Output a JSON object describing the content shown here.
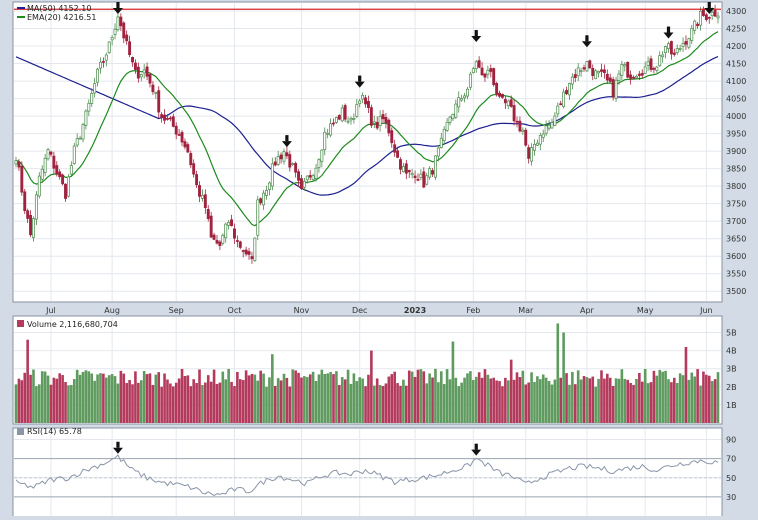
{
  "chart_data": {
    "type": "candlestick",
    "price_panel": {
      "ylim": [
        3475,
        4320
      ],
      "y_ticks": [
        "3500",
        "3550",
        "3600",
        "3650",
        "3700",
        "3750",
        "3800",
        "3850",
        "3900",
        "3950",
        "4000",
        "4050",
        "4100",
        "4150",
        "4200",
        "4250",
        "4300"
      ],
      "legend": [
        {
          "label": "MA(50) 4152.10",
          "color": "#1c1f8f"
        },
        {
          "label": "EMA(20) 4216.51",
          "color": "#1e8b1e"
        }
      ],
      "resistance_level": 4305,
      "resistance_color": "#d9242a",
      "x_ticks": [
        {
          "label": "Jul",
          "index": 12
        },
        {
          "label": "Aug",
          "index": 33
        },
        {
          "label": "Sep",
          "index": 55
        },
        {
          "label": "Oct",
          "index": 75
        },
        {
          "label": "Nov",
          "index": 98
        },
        {
          "label": "Dec",
          "index": 118
        },
        {
          "label": "2023",
          "index": 137,
          "bold": true
        },
        {
          "label": "Feb",
          "index": 157
        },
        {
          "label": "Mar",
          "index": 175
        },
        {
          "label": "Apr",
          "index": 196
        },
        {
          "label": "May",
          "index": 216
        },
        {
          "label": "Jun",
          "index": 237
        }
      ],
      "bars": 242,
      "anchors": [
        [
          0,
          3890
        ],
        [
          3,
          3740
        ],
        [
          5,
          3660
        ],
        [
          8,
          3820
        ],
        [
          11,
          3900
        ],
        [
          14,
          3840
        ],
        [
          17,
          3780
        ],
        [
          20,
          3900
        ],
        [
          24,
          4000
        ],
        [
          28,
          4120
        ],
        [
          32,
          4200
        ],
        [
          35,
          4290
        ],
        [
          38,
          4200
        ],
        [
          41,
          4120
        ],
        [
          44,
          4130
        ],
        [
          47,
          4080
        ],
        [
          50,
          4000
        ],
        [
          53,
          3980
        ],
        [
          56,
          3950
        ],
        [
          59,
          3900
        ],
        [
          62,
          3800
        ],
        [
          65,
          3740
        ],
        [
          67,
          3650
        ],
        [
          70,
          3630
        ],
        [
          73,
          3700
        ],
        [
          76,
          3640
        ],
        [
          79,
          3610
        ],
        [
          81,
          3580
        ],
        [
          83,
          3750
        ],
        [
          86,
          3800
        ],
        [
          89,
          3870
        ],
        [
          92,
          3900
        ],
        [
          95,
          3850
        ],
        [
          98,
          3780
        ],
        [
          100,
          3820
        ],
        [
          103,
          3860
        ],
        [
          106,
          3950
        ],
        [
          109,
          3980
        ],
        [
          112,
          4010
        ],
        [
          115,
          3980
        ],
        [
          118,
          4060
        ],
        [
          120,
          4030
        ],
        [
          123,
          3970
        ],
        [
          126,
          3990
        ],
        [
          128,
          3960
        ],
        [
          131,
          3880
        ],
        [
          134,
          3830
        ],
        [
          137,
          3840
        ],
        [
          140,
          3810
        ],
        [
          143,
          3850
        ],
        [
          146,
          3920
        ],
        [
          149,
          4000
        ],
        [
          152,
          4040
        ],
        [
          155,
          4080
        ],
        [
          158,
          4160
        ],
        [
          160,
          4110
        ],
        [
          163,
          4130
        ],
        [
          166,
          4040
        ],
        [
          169,
          4030
        ],
        [
          172,
          3980
        ],
        [
          174,
          3960
        ],
        [
          176,
          3870
        ],
        [
          178,
          3920
        ],
        [
          181,
          3960
        ],
        [
          184,
          3980
        ],
        [
          187,
          4040
        ],
        [
          190,
          4100
        ],
        [
          193,
          4130
        ],
        [
          196,
          4150
        ],
        [
          199,
          4120
        ],
        [
          202,
          4110
        ],
        [
          205,
          4070
        ],
        [
          208,
          4140
        ],
        [
          211,
          4120
        ],
        [
          214,
          4130
        ],
        [
          217,
          4140
        ],
        [
          220,
          4150
        ],
        [
          223,
          4200
        ],
        [
          226,
          4170
        ],
        [
          229,
          4210
        ],
        [
          232,
          4240
        ],
        [
          235,
          4285
        ],
        [
          238,
          4290
        ],
        [
          241,
          4300
        ]
      ],
      "arrows": [
        {
          "index": 35,
          "value": 4290
        },
        {
          "index": 93,
          "value": 3900
        },
        {
          "index": 118,
          "value": 4070
        },
        {
          "index": 158,
          "value": 4200
        },
        {
          "index": 196,
          "value": 4185
        },
        {
          "index": 224,
          "value": 4210
        },
        {
          "index": 238,
          "value": 4330
        }
      ]
    },
    "volume_panel": {
      "title": "Volume 2,116,680,704",
      "ylim": [
        0,
        5.8
      ],
      "y_ticks": [
        "1B",
        "2B",
        "3B",
        "4B",
        "5B"
      ],
      "spikes": [
        [
          4,
          4.6
        ],
        [
          88,
          3.8
        ],
        [
          122,
          4.0
        ],
        [
          150,
          4.5
        ],
        [
          170,
          3.5
        ],
        [
          186,
          5.5
        ],
        [
          188,
          5.0
        ],
        [
          230,
          4.2
        ]
      ]
    },
    "rsi_panel": {
      "title": "RSI(14) 65.78",
      "ylim": [
        10,
        100
      ],
      "y_ticks": [
        "30",
        "50",
        "70",
        "90"
      ],
      "levels": [
        30,
        70
      ],
      "anchors": [
        [
          0,
          45
        ],
        [
          6,
          40
        ],
        [
          12,
          48
        ],
        [
          18,
          50
        ],
        [
          24,
          58
        ],
        [
          30,
          65
        ],
        [
          35,
          72
        ],
        [
          40,
          58
        ],
        [
          45,
          50
        ],
        [
          50,
          45
        ],
        [
          55,
          43
        ],
        [
          60,
          40
        ],
        [
          65,
          34
        ],
        [
          70,
          32
        ],
        [
          75,
          38
        ],
        [
          80,
          36
        ],
        [
          85,
          46
        ],
        [
          90,
          52
        ],
        [
          95,
          48
        ],
        [
          100,
          44
        ],
        [
          105,
          52
        ],
        [
          110,
          55
        ],
        [
          115,
          54
        ],
        [
          120,
          58
        ],
        [
          125,
          52
        ],
        [
          130,
          46
        ],
        [
          135,
          48
        ],
        [
          140,
          50
        ],
        [
          145,
          53
        ],
        [
          150,
          58
        ],
        [
          155,
          62
        ],
        [
          158,
          70
        ],
        [
          162,
          63
        ],
        [
          166,
          55
        ],
        [
          170,
          52
        ],
        [
          175,
          43
        ],
        [
          180,
          50
        ],
        [
          185,
          55
        ],
        [
          190,
          60
        ],
        [
          195,
          62
        ],
        [
          200,
          60
        ],
        [
          205,
          57
        ],
        [
          210,
          60
        ],
        [
          215,
          62
        ],
        [
          220,
          58
        ],
        [
          225,
          63
        ],
        [
          230,
          66
        ],
        [
          235,
          68
        ],
        [
          241,
          66
        ]
      ],
      "arrows": [
        {
          "index": 35,
          "value": 72
        },
        {
          "index": 158,
          "value": 70
        }
      ]
    },
    "colors": {
      "up": "#4a8a4a",
      "down": "#a0223e",
      "vol_up": "#5f9a5f",
      "vol_down": "#b33a5c",
      "rsi_line": "#8a95a8"
    }
  }
}
